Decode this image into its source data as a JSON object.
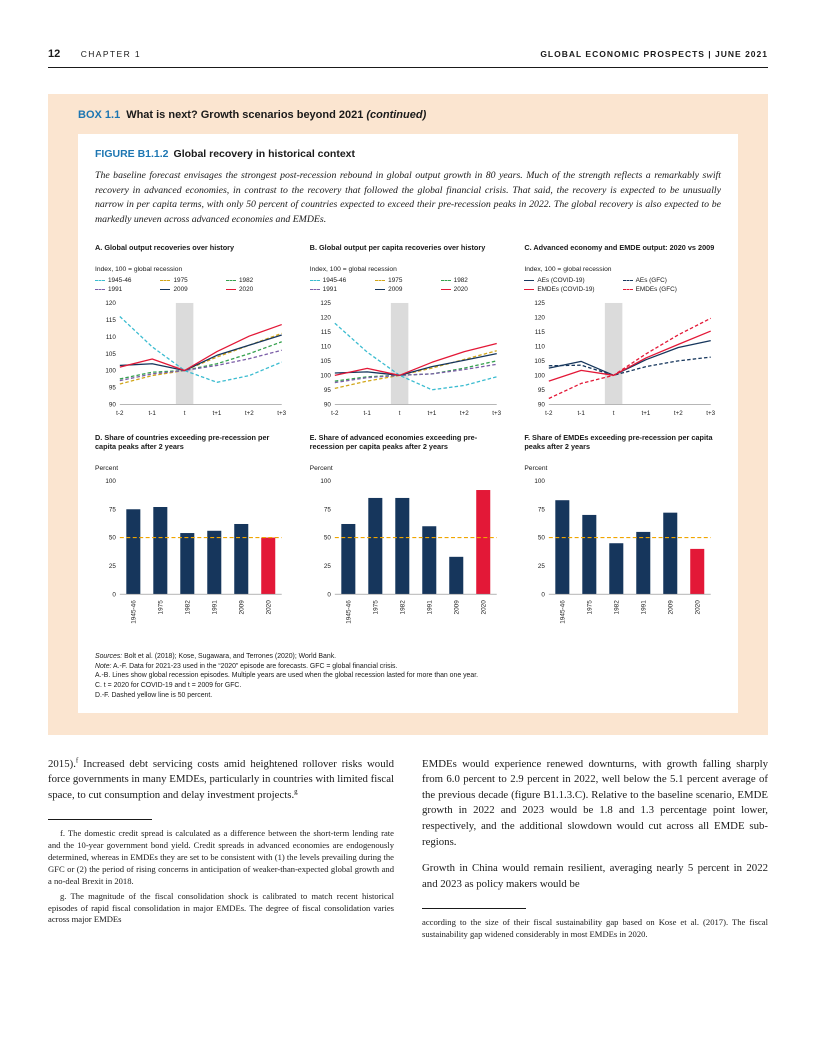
{
  "page": {
    "page_number": "12",
    "chapter": "CHAPTER 1",
    "report_title": "GLOBAL ECONOMIC PROSPECTS | JUNE 2021"
  },
  "box": {
    "label": "BOX 1.1",
    "title": "What is next? Growth scenarios beyond 2021",
    "continued": "(continued)"
  },
  "figure": {
    "label": "FIGURE B1.1.2",
    "title": "Global recovery in historical context",
    "abstract": "The baseline forecast envisages the strongest post-recession rebound in global output growth in 80 years. Much of the strength reflects a remarkably swift recovery in advanced economies, in contrast to the recovery that followed the global financial crisis. That said, the recovery is expected to be unusually narrow in per capita terms, with only 50 percent of countries expected to exceed their pre-recession peaks in 2022. The global recovery is also expected to be markedly uneven across advanced economies and EMDEs."
  },
  "colors": {
    "accent_blue": "#1d76b2",
    "navy": "#16365c",
    "red": "#e31837",
    "cyan": "#3bbcd0",
    "mustard": "#d1a619",
    "green": "#35a14e",
    "purple": "#7b5ea7",
    "refline_yellow": "#f0a500",
    "box_background": "#fbe5d0",
    "recession_band": "#dbdbdb"
  },
  "chart_data": [
    {
      "id": "A",
      "type": "line",
      "title": "A. Global output recoveries over history",
      "subtitle": "Index, 100 = global recession",
      "x": [
        "t-2",
        "t-1",
        "t",
        "t+1",
        "t+2",
        "t+3"
      ],
      "ylim": [
        90,
        120
      ],
      "yticks": [
        90,
        95,
        100,
        105,
        110,
        115,
        120
      ],
      "shaded_x": "t",
      "legend_position": "top",
      "series": [
        {
          "name": "1945-46",
          "color": "#3bbcd0",
          "dash": true,
          "values": [
            116,
            107,
            100,
            96.5,
            98.5,
            102.5
          ]
        },
        {
          "name": "1975",
          "color": "#d1a619",
          "dash": true,
          "values": [
            96,
            98.5,
            100,
            104,
            107.5,
            111
          ]
        },
        {
          "name": "1982",
          "color": "#35a14e",
          "dash": true,
          "values": [
            97.5,
            99.5,
            100,
            102,
            105,
            108.5
          ]
        },
        {
          "name": "1991",
          "color": "#7b5ea7",
          "dash": true,
          "values": [
            97,
            99,
            100,
            101.5,
            103.5,
            106
          ]
        },
        {
          "name": "2009",
          "color": "#16365c",
          "dash": false,
          "values": [
            101.5,
            102,
            100,
            104.5,
            107.5,
            110.5
          ]
        },
        {
          "name": "2020",
          "color": "#e31837",
          "dash": false,
          "values": [
            101,
            103.4,
            100,
            105.6,
            110.2,
            113.6
          ]
        }
      ]
    },
    {
      "id": "B",
      "type": "line",
      "title": "B. Global output per capita recoveries over history",
      "subtitle": "Index, 100 = global recession",
      "x": [
        "t-2",
        "t-1",
        "t",
        "t+1",
        "t+2",
        "t+3"
      ],
      "ylim": [
        90,
        125
      ],
      "yticks": [
        90,
        95,
        100,
        105,
        110,
        115,
        120,
        125
      ],
      "shaded_x": "t",
      "legend_position": "top",
      "series": [
        {
          "name": "1945-46",
          "color": "#3bbcd0",
          "dash": true,
          "values": [
            118,
            108,
            100,
            95,
            96.5,
            99.5
          ]
        },
        {
          "name": "1975",
          "color": "#d1a619",
          "dash": true,
          "values": [
            95.5,
            98,
            100,
            102.5,
            105.5,
            108.5
          ]
        },
        {
          "name": "1982",
          "color": "#35a14e",
          "dash": true,
          "values": [
            98,
            99.5,
            100,
            100.5,
            102.5,
            105
          ]
        },
        {
          "name": "1991",
          "color": "#7b5ea7",
          "dash": true,
          "values": [
            97.5,
            99.2,
            100,
            100.5,
            102,
            103.8
          ]
        },
        {
          "name": "2009",
          "color": "#16365c",
          "dash": false,
          "values": [
            100.8,
            101.2,
            100,
            103,
            105.2,
            107.5
          ]
        },
        {
          "name": "2020",
          "color": "#e31837",
          "dash": false,
          "values": [
            100,
            102.4,
            100,
            104.5,
            108.2,
            111
          ]
        }
      ]
    },
    {
      "id": "C",
      "type": "line",
      "title": "C. Advanced economy and EMDE output: 2020 vs 2009",
      "subtitle": "Index, 100 = global recession",
      "x": [
        "t-2",
        "t-1",
        "t",
        "t+1",
        "t+2",
        "t+3"
      ],
      "ylim": [
        90,
        125
      ],
      "yticks": [
        90,
        95,
        100,
        105,
        110,
        115,
        120,
        125
      ],
      "shaded_x": "t",
      "legend_position": "top",
      "series": [
        {
          "name": "AEs (COVID-19)",
          "color": "#16365c",
          "dash": false,
          "values": [
            102.5,
            104.8,
            100,
            105.4,
            109.6,
            112
          ]
        },
        {
          "name": "AEs (GFC)",
          "color": "#16365c",
          "dash": true,
          "values": [
            103.3,
            103.5,
            100,
            103,
            105,
            106.3
          ]
        },
        {
          "name": "EMDEs (COVID-19)",
          "color": "#e31837",
          "dash": false,
          "values": [
            98,
            101.7,
            100,
            106,
            110.7,
            115.3
          ]
        },
        {
          "name": "EMDEs (GFC)",
          "color": "#e31837",
          "dash": true,
          "values": [
            92,
            97.2,
            100,
            107.4,
            114,
            119.7
          ]
        }
      ]
    },
    {
      "id": "D",
      "type": "bar",
      "title": "D. Share of countries exceeding pre-recession per capita peaks after 2 years",
      "subtitle": "Percent",
      "categories": [
        "1945-46",
        "1975",
        "1982",
        "1991",
        "2009",
        "2020"
      ],
      "values": [
        75,
        77,
        54,
        56,
        62,
        50
      ],
      "ylim": [
        0,
        100
      ],
      "yticks": [
        0,
        25,
        50,
        75,
        100
      ],
      "bar_color": "#16365c",
      "highlight_last": true,
      "highlight_color": "#e31837",
      "refline": 50,
      "refline_color": "#f0a500"
    },
    {
      "id": "E",
      "type": "bar",
      "title": "E. Share of advanced economies exceeding pre-recession per capita peaks after 2 years",
      "subtitle": "Percent",
      "categories": [
        "1945-46",
        "1975",
        "1982",
        "1991",
        "2009",
        "2020"
      ],
      "values": [
        62,
        85,
        85,
        60,
        33,
        92
      ],
      "ylim": [
        0,
        100
      ],
      "yticks": [
        0,
        25,
        50,
        75,
        100
      ],
      "bar_color": "#16365c",
      "highlight_last": true,
      "highlight_color": "#e31837",
      "refline": 50,
      "refline_color": "#f0a500"
    },
    {
      "id": "F",
      "type": "bar",
      "title": "F. Share of EMDEs exceeding pre-recession per capita peaks after 2 years",
      "subtitle": "Percent",
      "categories": [
        "1945-46",
        "1975",
        "1982",
        "1991",
        "2009",
        "2020"
      ],
      "values": [
        83,
        70,
        45,
        55,
        72,
        40
      ],
      "ylim": [
        0,
        100
      ],
      "yticks": [
        0,
        25,
        50,
        75,
        100
      ],
      "bar_color": "#16365c",
      "highlight_last": true,
      "highlight_color": "#e31837",
      "refline": 50,
      "refline_color": "#f0a500"
    }
  ],
  "notes": {
    "sources_label": "Sources:",
    "sources_text": " Bolt et al. (2018); Kose, Sugawara, and Terrones (2020); World Bank.",
    "note_label": "Note:",
    "note_text": " A.-F. Data for 2021-23 used in the “2020” episode are forecasts. GFC = global financial crisis.",
    "line_ab": "A.-B. Lines show global recession episodes. Multiple years are used when the global recession lasted for more than one year.",
    "line_c": "C. t = 2020 for COVID-19 and t = 2009 for GFC.",
    "line_df": "D.-F. Dashed yellow line is 50 percent."
  },
  "body": {
    "left_p1_a": "2015).",
    "left_p1_sup1": "f",
    "left_p1_b": " Increased debt servicing costs amid heightened rollover risks would force governments in many EMDEs, particularly in countries with limited fiscal space, to cut consumption and delay investment projects.",
    "left_p1_sup2": "g",
    "right_p1": "EMDEs would experience renewed downturns, with growth falling sharply from 6.0 percent to 2.9 percent in 2022, well below the 5.1 percent average of the previous decade (figure B1.1.3.C). Relative to the baseline scenario, EMDE growth in 2022 and 2023 would be 1.8 and 1.3 percentage point lower, respectively, and the additional slowdown would cut across all EMDE sub-regions.",
    "right_p2": "Growth in China would remain resilient, averaging nearly 5 percent in 2022 and 2023 as policy makers would be"
  },
  "footnotes": {
    "f": "f. The domestic credit spread is calculated as a difference between the short-term lending rate and the 10-year government bond yield. Credit spreads in advanced economies are endogenously determined, whereas in EMDEs they are set to be consistent with (1) the levels prevailing during the GFC or (2) the period of rising concerns in anticipation of weaker-than-expected global growth and a no-deal Brexit in 2018.",
    "g": "g. The magnitude of the fiscal consolidation shock is calibrated to match recent historical episodes of rapid fiscal consolidation in major EMDEs. The degree of fiscal consolidation varies across major EMDEs",
    "right_continuation": "according to the size of their fiscal sustainability gap based on Kose et al. (2017). The fiscal sustainability gap widened considerably in most EMDEs in 2020."
  }
}
